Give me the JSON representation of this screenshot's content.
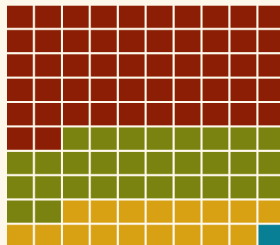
{
  "chart_data": {
    "type": "waffle",
    "grid": {
      "rows": 10,
      "columns": 10,
      "fill_order": "row-major-from-top-left"
    },
    "series": [
      {
        "count": 52,
        "color": "#8b1e04"
      },
      {
        "count": 30,
        "color": "#7b8310"
      },
      {
        "count": 17,
        "color": "#d8a114"
      },
      {
        "count": 1,
        "color": "#097f95"
      }
    ],
    "background": "#fdf8ea",
    "title": "",
    "legend": false
  }
}
